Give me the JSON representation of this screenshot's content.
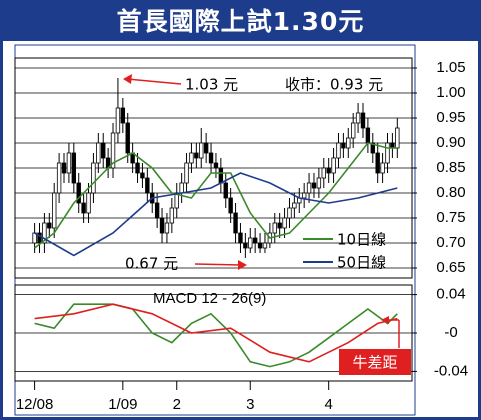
{
  "chart_data": [
    {
      "type": "candlestick",
      "title": "首長國際上試1.30元",
      "annotations": [
        "1.03 元",
        "收市：0.93 元",
        "0.67 元"
      ],
      "open": [
        0.7,
        0.72,
        0.7,
        0.74,
        0.73,
        0.8,
        0.86,
        0.84,
        0.88,
        0.82,
        0.78,
        0.76,
        0.8,
        0.86,
        0.9,
        0.87,
        0.85,
        0.92,
        0.97,
        0.94,
        0.88,
        0.86,
        0.84,
        0.83,
        0.8,
        0.78,
        0.75,
        0.72,
        0.74,
        0.77,
        0.8,
        0.82,
        0.86,
        0.88,
        0.87,
        0.9,
        0.88,
        0.86,
        0.85,
        0.82,
        0.79,
        0.76,
        0.72,
        0.7,
        0.69,
        0.71,
        0.7,
        0.69,
        0.7,
        0.72,
        0.74,
        0.73,
        0.75,
        0.77,
        0.78,
        0.79,
        0.8,
        0.82,
        0.81,
        0.83,
        0.85,
        0.84,
        0.87,
        0.9,
        0.89,
        0.91,
        0.94,
        0.96,
        0.93,
        0.9,
        0.88,
        0.84,
        0.86,
        0.9,
        0.89
      ],
      "high": [
        0.74,
        0.74,
        0.76,
        0.76,
        0.82,
        0.88,
        0.88,
        0.9,
        0.9,
        0.84,
        0.8,
        0.82,
        0.88,
        0.92,
        0.92,
        0.89,
        0.94,
        1.03,
        0.99,
        0.96,
        0.9,
        0.88,
        0.86,
        0.85,
        0.82,
        0.8,
        0.77,
        0.76,
        0.79,
        0.82,
        0.84,
        0.88,
        0.9,
        0.9,
        0.93,
        0.92,
        0.9,
        0.88,
        0.87,
        0.84,
        0.81,
        0.78,
        0.74,
        0.72,
        0.73,
        0.73,
        0.72,
        0.72,
        0.74,
        0.76,
        0.76,
        0.77,
        0.79,
        0.8,
        0.81,
        0.82,
        0.84,
        0.84,
        0.85,
        0.87,
        0.87,
        0.89,
        0.92,
        0.92,
        0.93,
        0.96,
        0.98,
        0.98,
        0.95,
        0.92,
        0.9,
        0.88,
        0.92,
        0.92,
        0.95
      ],
      "low": [
        0.68,
        0.68,
        0.68,
        0.71,
        0.71,
        0.78,
        0.82,
        0.82,
        0.8,
        0.76,
        0.74,
        0.74,
        0.78,
        0.84,
        0.85,
        0.83,
        0.83,
        0.9,
        0.92,
        0.86,
        0.84,
        0.82,
        0.81,
        0.78,
        0.76,
        0.73,
        0.7,
        0.7,
        0.72,
        0.75,
        0.78,
        0.8,
        0.84,
        0.85,
        0.85,
        0.86,
        0.84,
        0.83,
        0.8,
        0.77,
        0.74,
        0.7,
        0.68,
        0.67,
        0.68,
        0.68,
        0.68,
        0.68,
        0.69,
        0.7,
        0.71,
        0.71,
        0.73,
        0.75,
        0.76,
        0.77,
        0.78,
        0.79,
        0.79,
        0.81,
        0.82,
        0.82,
        0.85,
        0.87,
        0.87,
        0.89,
        0.92,
        0.91,
        0.88,
        0.86,
        0.82,
        0.82,
        0.84,
        0.87,
        0.87
      ],
      "close": [
        0.72,
        0.7,
        0.74,
        0.73,
        0.8,
        0.86,
        0.84,
        0.88,
        0.82,
        0.78,
        0.76,
        0.8,
        0.86,
        0.9,
        0.87,
        0.85,
        0.92,
        0.97,
        0.94,
        0.88,
        0.86,
        0.84,
        0.83,
        0.8,
        0.78,
        0.75,
        0.72,
        0.74,
        0.77,
        0.8,
        0.82,
        0.86,
        0.88,
        0.87,
        0.9,
        0.88,
        0.86,
        0.85,
        0.82,
        0.79,
        0.76,
        0.72,
        0.7,
        0.69,
        0.71,
        0.7,
        0.69,
        0.7,
        0.72,
        0.74,
        0.73,
        0.75,
        0.77,
        0.78,
        0.79,
        0.8,
        0.82,
        0.81,
        0.83,
        0.85,
        0.84,
        0.87,
        0.9,
        0.89,
        0.91,
        0.94,
        0.96,
        0.93,
        0.9,
        0.88,
        0.84,
        0.86,
        0.9,
        0.89,
        0.93
      ],
      "series": [
        {
          "name": "10日線",
          "color": "#3a8a2a",
          "x": [
            0,
            4,
            8,
            12,
            16,
            20,
            24,
            28,
            32,
            36,
            40,
            44,
            48,
            52,
            56,
            60,
            64,
            68,
            72,
            74
          ],
          "values": [
            0.69,
            0.72,
            0.78,
            0.82,
            0.86,
            0.88,
            0.85,
            0.8,
            0.79,
            0.84,
            0.84,
            0.76,
            0.71,
            0.72,
            0.76,
            0.8,
            0.85,
            0.9,
            0.89,
            0.89
          ]
        },
        {
          "name": "50日線",
          "color": "#1e3c8c",
          "x": [
            0,
            8,
            16,
            24,
            30,
            36,
            42,
            48,
            54,
            60,
            66,
            74
          ],
          "values": [
            0.72,
            0.675,
            0.72,
            0.79,
            0.8,
            0.81,
            0.84,
            0.82,
            0.79,
            0.78,
            0.79,
            0.81
          ]
        }
      ],
      "up_color": "#ffffff",
      "down_color": "#000000",
      "xlim": [
        -4,
        77
      ],
      "ylim": [
        0.63,
        1.07
      ],
      "yticks": [
        0.65,
        {
          "value": 0.7,
          "label": "0.70"
        },
        0.75,
        {
          "value": 0.8,
          "label": "0.80"
        },
        0.85,
        {
          "value": 0.9,
          "label": "0.90"
        },
        0.95,
        {
          "value": 1.0,
          "label": "1.00"
        },
        1.05
      ],
      "grid": true
    },
    {
      "type": "line",
      "title": "MACD 12 - 26(9)",
      "annotations": [
        "牛差距"
      ],
      "series": [
        {
          "color": "#3a8a2a",
          "x": [
            0,
            4,
            8,
            12,
            16,
            20,
            24,
            28,
            32,
            36,
            40,
            44,
            48,
            52,
            56,
            60,
            64,
            68,
            72,
            74
          ],
          "values": [
            0.01,
            0.005,
            0.03,
            0.03,
            0.03,
            0.025,
            0.0,
            -0.01,
            0.01,
            0.02,
            0.0,
            -0.03,
            -0.035,
            -0.03,
            -0.02,
            -0.005,
            0.01,
            0.025,
            0.01,
            0.02
          ]
        },
        {
          "color": "#e02020",
          "x": [
            0,
            8,
            16,
            24,
            32,
            40,
            48,
            56,
            64,
            70,
            74
          ],
          "values": [
            0.015,
            0.02,
            0.03,
            0.02,
            0.0,
            0.005,
            -0.02,
            -0.03,
            -0.01,
            0.01,
            0.015
          ]
        }
      ],
      "xlim": [
        -4,
        77
      ],
      "ylim": [
        -0.05,
        0.05
      ],
      "yticks": [
        0.04,
        {
          "value": 0,
          "label": "-0"
        },
        -0.04
      ],
      "xticks": [
        {
          "value": 0,
          "label": "12/08"
        },
        {
          "value": 18,
          "label": "1/09"
        },
        {
          "value": 29,
          "label": "2"
        },
        {
          "value": 44,
          "label": "3"
        },
        {
          "value": 60,
          "label": "4"
        }
      ],
      "grid": true
    }
  ]
}
